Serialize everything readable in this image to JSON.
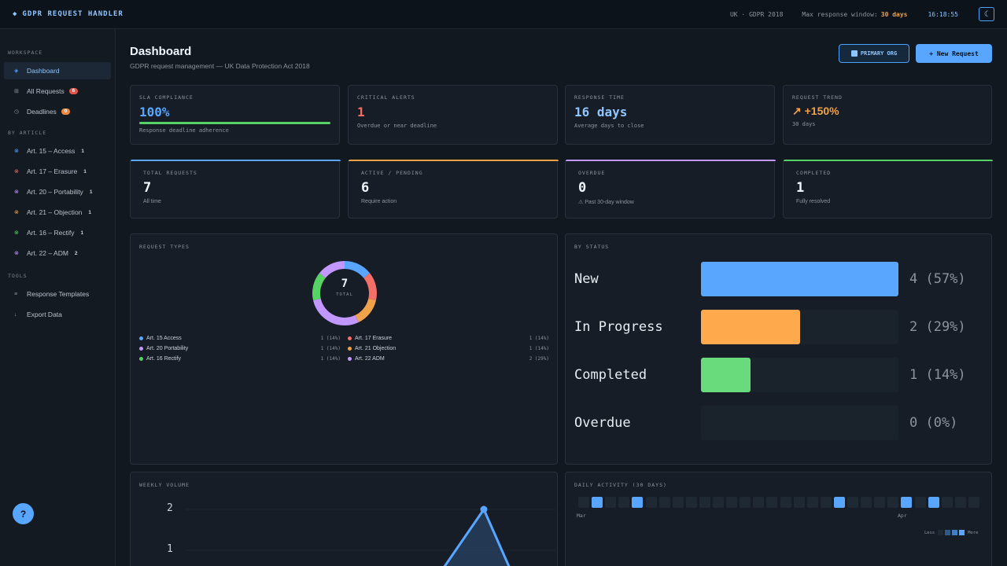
{
  "topbar": {
    "title": "GDPR REQUEST HANDLER",
    "brand_icon": "◆",
    "jurisdiction": "UK · GDPR 2018",
    "window_label": "Max response window:",
    "window_value": "30 days",
    "clock": "16:18:55",
    "theme_icon": "☾"
  },
  "sidebar": {
    "workspace_label": "WORKSPACE",
    "workspace_items": [
      {
        "icon": "◈",
        "label": "Dashboard"
      },
      {
        "icon": "⊞",
        "label": "All Requests",
        "badge": "6"
      },
      {
        "icon": "◷",
        "label": "Deadlines",
        "badge": "0"
      }
    ],
    "article_label": "BY ARTICLE",
    "article_items": [
      {
        "label": "Art. 15 – Access",
        "count": "1",
        "color": "#58a6ff"
      },
      {
        "label": "Art. 17 – Erasure",
        "count": "1",
        "color": "#f47067"
      },
      {
        "label": "Art. 20 – Portability",
        "count": "1",
        "color": "#c297ff"
      },
      {
        "label": "Art. 21 – Objection",
        "count": "1",
        "color": "#f0a24a"
      },
      {
        "label": "Art. 16 – Rectify",
        "count": "1",
        "color": "#56d364"
      },
      {
        "label": "Art. 22 – ADM",
        "count": "2",
        "color": "#c297ff"
      }
    ],
    "tools_label": "TOOLS",
    "tools_items": [
      {
        "icon": "≡",
        "label": "Response Templates"
      },
      {
        "icon": "↓",
        "label": "Export Data"
      }
    ],
    "help": "?"
  },
  "header": {
    "title": "Dashboard",
    "subtitle": "GDPR request management — UK Data Protection Act 2018",
    "org_button": "PRIMARY ORG",
    "new_button": "+ New Request"
  },
  "kpis": {
    "sla": {
      "label": "SLA COMPLIANCE",
      "value": "100%",
      "sub": "Response deadline adherence",
      "progress": 1.0
    },
    "alerts": {
      "label": "CRITICAL ALERTS",
      "value": "1",
      "sub": "Overdue or near deadline"
    },
    "response": {
      "label": "RESPONSE TIME",
      "value": "16 days",
      "sub": "Average days to close"
    },
    "trend": {
      "label": "REQUEST TREND",
      "value": "↗ +150%",
      "sub": "30 days"
    }
  },
  "stats": {
    "total": {
      "label": "TOTAL REQUESTS",
      "value": "7",
      "sub": "All time",
      "color": "#58a6ff"
    },
    "active": {
      "label": "ACTIVE / PENDING",
      "value": "6",
      "sub": "Require action",
      "color": "#f0a24a"
    },
    "overdue": {
      "label": "OVERDUE",
      "value": "0",
      "sub": "⚠ Past 30-day window",
      "color": "#c297ff"
    },
    "completed": {
      "label": "COMPLETED",
      "value": "1",
      "sub": "Fully resolved",
      "color": "#56d364"
    }
  },
  "request_types": {
    "label": "REQUEST TYPES",
    "total_value": "7",
    "total_label": "TOTAL",
    "legend": [
      {
        "name": "Art. 15 Access",
        "pct": "1 (14%)",
        "color": "#58a6ff",
        "value": 1
      },
      {
        "name": "Art. 17 Erasure",
        "pct": "1 (14%)",
        "color": "#f47067",
        "value": 1
      },
      {
        "name": "Art. 20 Portability",
        "pct": "1 (14%)",
        "color": "#c297ff",
        "value": 1
      },
      {
        "name": "Art. 21 Objection",
        "pct": "1 (14%)",
        "color": "#f0a24a",
        "value": 1
      },
      {
        "name": "Art. 16 Rectify",
        "pct": "1 (14%)",
        "color": "#56d364",
        "value": 1
      },
      {
        "name": "Art. 22 ADM",
        "pct": "2 (29%)",
        "color": "#c297ff",
        "value": 2
      }
    ]
  },
  "by_status": {
    "label": "BY STATUS",
    "rows": [
      {
        "name": "New",
        "value": "4 (57%)",
        "fraction": 1.0,
        "color": "#58a6ff"
      },
      {
        "name": "In Progress",
        "value": "2 (29%)",
        "fraction": 0.5,
        "color": "#ffa94d"
      },
      {
        "name": "Completed",
        "value": "1 (14%)",
        "fraction": 0.25,
        "color": "#69db7c"
      },
      {
        "name": "Overdue",
        "value": "0 (0%)",
        "fraction": 0,
        "color": "#69db7c"
      }
    ]
  },
  "weekly": {
    "label": "WEEKLY VOLUME",
    "tick_2": "2",
    "tick_1": "1"
  },
  "activity": {
    "label": "DAILY ACTIVITY (30 DAYS)",
    "month_1": "Mar",
    "month_2": "Apr",
    "less": "Less",
    "more": "More",
    "active_days": [
      1,
      4,
      19,
      24,
      26
    ]
  }
}
